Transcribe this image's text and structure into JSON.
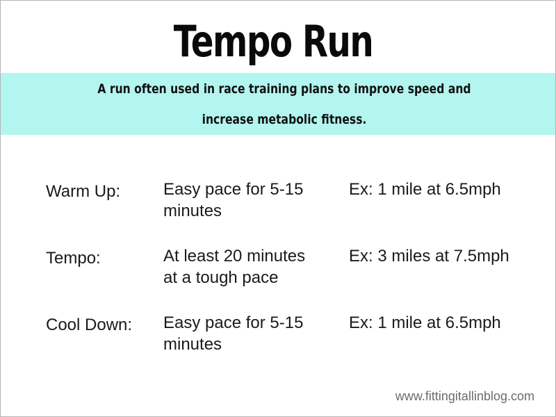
{
  "title": "Tempo Run",
  "subtitle": {
    "line1": "A run often used in race training plans to improve speed and",
    "line2": "increase metabolic fitness."
  },
  "rows": [
    {
      "label": "Warm Up:",
      "description_line1": "Easy pace for 5-15",
      "description_line2": "minutes",
      "example": "Ex: 1 mile at 6.5mph"
    },
    {
      "label": "Tempo:",
      "description_line1": "At least 20 minutes",
      "description_line2": "at a tough pace",
      "example": "Ex: 3 miles at 7.5mph"
    },
    {
      "label": "Cool Down:",
      "description_line1": "Easy pace for 5-15",
      "description_line2": "minutes",
      "example": "Ex: 1 mile at 6.5mph"
    }
  ],
  "footer": "www.fittingitallinblog.com",
  "colors": {
    "banner": "#b3f5ef",
    "title": "#0a0a0a",
    "body_text": "#1a1a1a",
    "footer_text": "#6b6b6b"
  }
}
